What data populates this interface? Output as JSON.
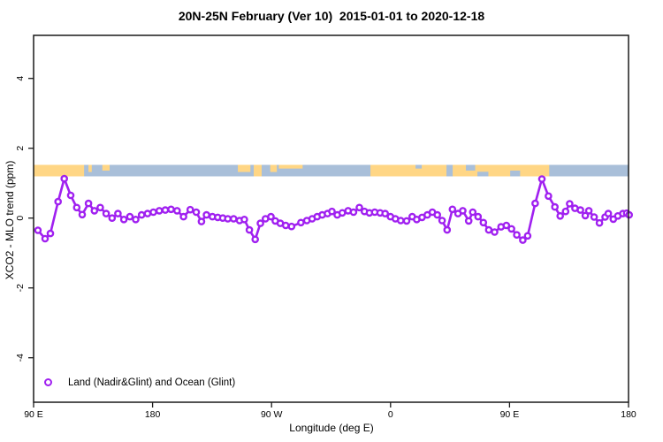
{
  "header": {
    "title": "20N-25N February (Ver 10)  2015-01-01 to 2020-12-18"
  },
  "legend": {
    "label": "Land (Nadir&Glint) and Ocean (Glint)"
  },
  "chart_data": {
    "type": "line",
    "title": "20N-25N February (Ver 10)  2015-01-01 to 2020-12-18",
    "xlabel": "Longitude (deg E)",
    "ylabel": "XCO2 - MLO trend (ppm)",
    "xlim": [
      90,
      540
    ],
    "ylim": [
      -5.3,
      5.3
    ],
    "grid": false,
    "legend_position": "bottom-left",
    "series_color": "#A020F0",
    "frame_color": "#1a1a1a",
    "x_ticks": [
      {
        "lon": 90,
        "label": "90 E"
      },
      {
        "lon": 180,
        "label": "180"
      },
      {
        "lon": 270,
        "label": "90 W"
      },
      {
        "lon": 360,
        "label": "0"
      },
      {
        "lon": 450,
        "label": "90 E"
      },
      {
        "lon": 540,
        "label": "180"
      }
    ],
    "y_ticks": [
      -4,
      -2,
      0,
      2,
      4
    ],
    "map_strip": {
      "meaning": "land-ocean map band drawn across plot near 1.4 ppm",
      "land_color": "#FFD685",
      "ocean_color": "#A9BFD9",
      "value_range": [
        1.2,
        1.55
      ],
      "land_segments": [
        {
          "from": 90,
          "to": 128.2,
          "part": "full"
        },
        {
          "from": 131.5,
          "to": 134,
          "part": "top60"
        },
        {
          "from": 142,
          "to": 147.5,
          "part": "top50"
        },
        {
          "from": 244.5,
          "to": 254,
          "part": "top60"
        },
        {
          "from": 256.5,
          "to": 262.5,
          "part": "full"
        },
        {
          "from": 269,
          "to": 274,
          "part": "top60"
        },
        {
          "from": 275.5,
          "to": 293.5,
          "part": "top30"
        },
        {
          "from": 344.8,
          "to": 402.3,
          "part": "full"
        },
        {
          "from": 407,
          "to": 480,
          "part": "full"
        }
      ],
      "ocean_notches": [
        {
          "from": 378.9,
          "to": 383.6,
          "part": "top30"
        },
        {
          "from": 417,
          "to": 424,
          "part": "top50"
        },
        {
          "from": 425.7,
          "to": 434,
          "part": "bottom40"
        },
        {
          "from": 450.5,
          "to": 458,
          "part": "bottom50"
        }
      ]
    },
    "series": [
      {
        "name": "Land (Nadir&Glint) and Ocean (Glint)",
        "points": [
          [
            93.3,
            -0.35
          ],
          [
            98.7,
            -0.59
          ],
          [
            102.7,
            -0.44
          ],
          [
            108.5,
            0.47
          ],
          [
            113.2,
            1.13
          ],
          [
            118.1,
            0.65
          ],
          [
            122.6,
            0.3
          ],
          [
            126.8,
            0.1
          ],
          [
            131.5,
            0.42
          ],
          [
            136.0,
            0.21
          ],
          [
            140.4,
            0.3
          ],
          [
            144.9,
            0.13
          ],
          [
            149.4,
            0.0
          ],
          [
            153.8,
            0.13
          ],
          [
            158.3,
            -0.04
          ],
          [
            162.8,
            0.04
          ],
          [
            167.2,
            -0.04
          ],
          [
            171.7,
            0.09
          ],
          [
            176.2,
            0.13
          ],
          [
            180.6,
            0.17
          ],
          [
            185.1,
            0.21
          ],
          [
            189.6,
            0.23
          ],
          [
            194.0,
            0.25
          ],
          [
            198.5,
            0.21
          ],
          [
            203.4,
            0.04
          ],
          [
            208.5,
            0.24
          ],
          [
            213.0,
            0.17
          ],
          [
            217.0,
            -0.1
          ],
          [
            220.8,
            0.09
          ],
          [
            225.3,
            0.04
          ],
          [
            229.3,
            0.02
          ],
          [
            233.1,
            0.0
          ],
          [
            236.9,
            -0.02
          ],
          [
            241.3,
            -0.02
          ],
          [
            245.8,
            -0.07
          ],
          [
            249.4,
            -0.04
          ],
          [
            253.2,
            -0.34
          ],
          [
            257.6,
            -0.61
          ],
          [
            261.6,
            -0.15
          ],
          [
            265.4,
            -0.02
          ],
          [
            269.5,
            0.04
          ],
          [
            272.8,
            -0.08
          ],
          [
            276.6,
            -0.15
          ],
          [
            280.7,
            -0.21
          ],
          [
            285.1,
            -0.24
          ],
          [
            292.2,
            -0.13
          ],
          [
            296.7,
            -0.07
          ],
          [
            300.7,
            -0.02
          ],
          [
            304.5,
            0.04
          ],
          [
            308.3,
            0.09
          ],
          [
            312.3,
            0.13
          ],
          [
            315.7,
            0.19
          ],
          [
            319.7,
            0.09
          ],
          [
            323.5,
            0.15
          ],
          [
            327.9,
            0.21
          ],
          [
            332.0,
            0.17
          ],
          [
            336.4,
            0.3
          ],
          [
            340.3,
            0.19
          ],
          [
            344.0,
            0.15
          ],
          [
            348.0,
            0.17
          ],
          [
            352.1,
            0.15
          ],
          [
            355.9,
            0.13
          ],
          [
            359.9,
            0.04
          ],
          [
            363.7,
            -0.02
          ],
          [
            367.7,
            -0.07
          ],
          [
            372.2,
            -0.08
          ],
          [
            376.4,
            0.04
          ],
          [
            379.8,
            -0.04
          ],
          [
            383.8,
            0.02
          ],
          [
            387.8,
            0.09
          ],
          [
            391.6,
            0.17
          ],
          [
            395.4,
            0.09
          ],
          [
            399.0,
            -0.07
          ],
          [
            402.8,
            -0.34
          ],
          [
            406.8,
            0.25
          ],
          [
            411.0,
            0.13
          ],
          [
            414.6,
            0.21
          ],
          [
            419.1,
            -0.08
          ],
          [
            422.2,
            0.17
          ],
          [
            426.2,
            0.04
          ],
          [
            430.2,
            -0.13
          ],
          [
            434.3,
            -0.34
          ],
          [
            438.7,
            -0.4
          ],
          [
            443.6,
            -0.25
          ],
          [
            447.6,
            -0.21
          ],
          [
            451.5,
            -0.31
          ],
          [
            455.5,
            -0.48
          ],
          [
            460.0,
            -0.63
          ],
          [
            463.7,
            -0.51
          ],
          [
            469.4,
            0.42
          ],
          [
            474.5,
            1.12
          ],
          [
            479.4,
            0.63
          ],
          [
            484.3,
            0.32
          ],
          [
            488.3,
            0.06
          ],
          [
            492.4,
            0.19
          ],
          [
            495.5,
            0.41
          ],
          [
            499.5,
            0.28
          ],
          [
            503.6,
            0.23
          ],
          [
            507.3,
            0.07
          ],
          [
            510.0,
            0.21
          ],
          [
            514.0,
            0.03
          ],
          [
            518.0,
            -0.14
          ],
          [
            522.3,
            0.03
          ],
          [
            524.7,
            0.13
          ],
          [
            528.5,
            -0.03
          ],
          [
            531.9,
            0.06
          ],
          [
            535.7,
            0.13
          ],
          [
            538.6,
            0.14
          ],
          [
            540.5,
            0.09
          ]
        ]
      }
    ]
  }
}
